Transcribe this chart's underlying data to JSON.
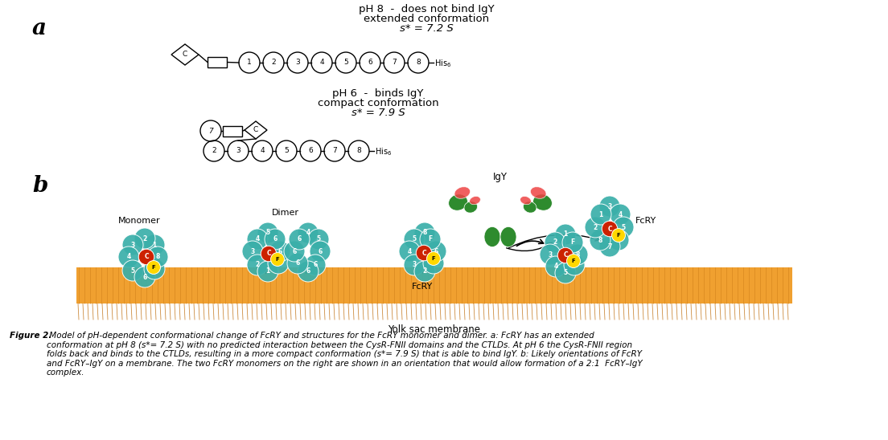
{
  "fig_width": 11.04,
  "fig_height": 5.48,
  "dpi": 100,
  "background": "#ffffff",
  "label_a": "a",
  "label_b": "b",
  "title_ph8_line1": "pH 8  -  does not bind IgY",
  "title_ph8_line2": "extended conformation",
  "title_ph8_line3": "s* = 7.2 S",
  "title_ph6_line1": "pH 6  -  binds IgY",
  "title_ph6_line2": "compact conformation",
  "title_ph6_line3": "s* = 7.9 S",
  "ph8_circles": [
    "1",
    "2",
    "3",
    "4",
    "5",
    "6",
    "7",
    "8"
  ],
  "ph6_circles": [
    "2",
    "3",
    "4",
    "5",
    "6",
    "7",
    "8"
  ],
  "membrane_label": "Yolk sac membrane",
  "monomer_label": "Monomer",
  "dimer_label": "Dimer",
  "fcry_label_center": "FcRY",
  "fcry_label_right": "FcRY",
  "igy_label": "IgY",
  "caption_bold": "Figure 2.",
  "caption_rest": " Model of pH-dependent conformational change of FcRY and structures for the FcRY monomer and dimer. a: FcRY has an extended\nconformation at pH 8 (s*= 7.2 S) with no predicted interaction between the CysR-FNII domains and the CTLDs. At pH 6 the CysR-FNII region\nfolds back and binds to the CTLDs, resulting in a more compact conformation (s*= 7.9 S) that is able to bind IgY. b: Likely orientations of FcRY\nand FcRY–IgY on a membrane. The two FcRY monomers on the right are shown in an orientation that would allow formation of a 2:1  FcRY–IgY\ncomplex.",
  "orange_mem": "#F0A030",
  "orange_mem_dark": "#C07010",
  "teal_color": "#3AAFA9",
  "red_color": "#CC2200",
  "green_dark": "#2E8B2E",
  "green_light": "#55CC55",
  "yellow_color": "#FFD700",
  "pink_red": "#EE4444"
}
